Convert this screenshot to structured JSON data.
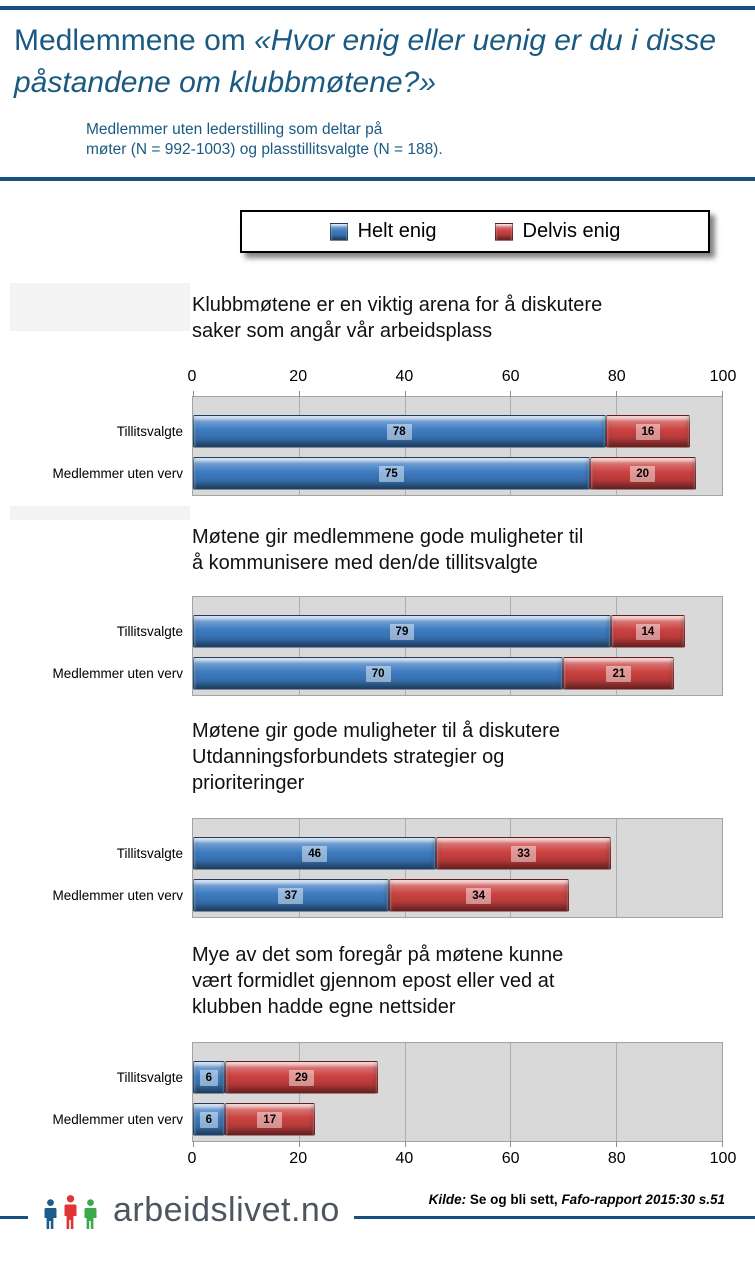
{
  "theme": {
    "accent_dark": "#17507e",
    "title_blue": "#1a5a82",
    "plot_bg": "#d9d9d9",
    "grid_color": "#aeaeae"
  },
  "header": {
    "title_regular": "Medlemmene om ",
    "title_italic": "«Hvor enig eller uenig er du i disse påstandene om klubbmøtene?»",
    "subtitle_line1": "Medlemmer uten lederstilling som deltar på",
    "subtitle_line2": "møter (N = 992-1003) og plasstillitsvalgte (N = 188)."
  },
  "legend": {
    "items": [
      {
        "label": "Helt enig",
        "color": "#3d7cc1"
      },
      {
        "label": "Delvis enig",
        "color": "#cb4241"
      }
    ]
  },
  "chart_data": [
    {
      "type": "bar",
      "orientation": "horizontal-stacked",
      "title": "Klubbmøtene er en viktig arena for å diskutere saker som angår vår arbeidsplass",
      "title_lines": [
        "Klubbmøtene er en viktig arena for å diskutere",
        "saker som angår vår arbeidsplass"
      ],
      "categories": [
        "Tillitsvalgte",
        "Medlemmer uten verv"
      ],
      "series": [
        {
          "name": "Helt enig",
          "color": "#3d7cc1",
          "values": [
            78,
            75
          ]
        },
        {
          "name": "Delvis enig",
          "color": "#cb4241",
          "values": [
            16,
            20
          ]
        }
      ],
      "xlim": [
        0,
        100
      ],
      "ticks": [
        0,
        20,
        40,
        60,
        80,
        100
      ],
      "axis": "top",
      "grid": true,
      "legend_position": "shared-top"
    },
    {
      "type": "bar",
      "orientation": "horizontal-stacked",
      "title": "Møtene gir medlemmene gode muligheter til å kommunisere med den/de tillitsvalgte",
      "title_lines": [
        "Møtene gir medlemmene gode muligheter til",
        "å kommunisere med den/de tillitsvalgte"
      ],
      "categories": [
        "Tillitsvalgte",
        "Medlemmer uten verv"
      ],
      "series": [
        {
          "name": "Helt enig",
          "color": "#3d7cc1",
          "values": [
            79,
            70
          ]
        },
        {
          "name": "Delvis enig",
          "color": "#cb4241",
          "values": [
            14,
            21
          ]
        }
      ],
      "xlim": [
        0,
        100
      ],
      "ticks": [
        0,
        20,
        40,
        60,
        80,
        100
      ],
      "axis": "none",
      "grid": true,
      "legend_position": "shared-top"
    },
    {
      "type": "bar",
      "orientation": "horizontal-stacked",
      "title": "Møtene gir gode muligheter til å diskutere Utdanningsforbundets strategier og prioriteringer",
      "title_lines": [
        "Møtene gir gode muligheter til å diskutere",
        "Utdanningsforbundets strategier og",
        "prioriteringer"
      ],
      "categories": [
        "Tillitsvalgte",
        "Medlemmer uten verv"
      ],
      "series": [
        {
          "name": "Helt enig",
          "color": "#3d7cc1",
          "values": [
            46,
            37
          ]
        },
        {
          "name": "Delvis enig",
          "color": "#cb4241",
          "values": [
            33,
            34
          ]
        }
      ],
      "xlim": [
        0,
        100
      ],
      "ticks": [
        0,
        20,
        40,
        60,
        80,
        100
      ],
      "axis": "none",
      "grid": true,
      "legend_position": "shared-top"
    },
    {
      "type": "bar",
      "orientation": "horizontal-stacked",
      "title": "Mye av det som foregår på møtene kunne vært formidlet gjennom epost eller ved at klubben hadde egne nettsider",
      "title_lines": [
        "Mye av det som foregår på møtene kunne",
        "vært formidlet gjennom epost eller ved at",
        "klubben hadde egne nettsider"
      ],
      "categories": [
        "Tillitsvalgte",
        "Medlemmer uten verv"
      ],
      "series": [
        {
          "name": "Helt enig",
          "color": "#3d7cc1",
          "values": [
            6,
            6
          ]
        },
        {
          "name": "Delvis enig",
          "color": "#cb4241",
          "values": [
            29,
            17
          ]
        }
      ],
      "xlim": [
        0,
        100
      ],
      "ticks": [
        0,
        20,
        40,
        60,
        80,
        100
      ],
      "axis": "bottom",
      "grid": true,
      "legend_position": "shared-top"
    }
  ],
  "footer": {
    "logo_text": "arbeidslivet.no",
    "logo_people_colors": [
      "#1f5c8b",
      "#e03534",
      "#3aaa4c"
    ],
    "source_prefix": "Kilde:",
    "source_main": " Se og bli sett, ",
    "source_detail": "Fafo-rapport 2015:30 s.51"
  }
}
